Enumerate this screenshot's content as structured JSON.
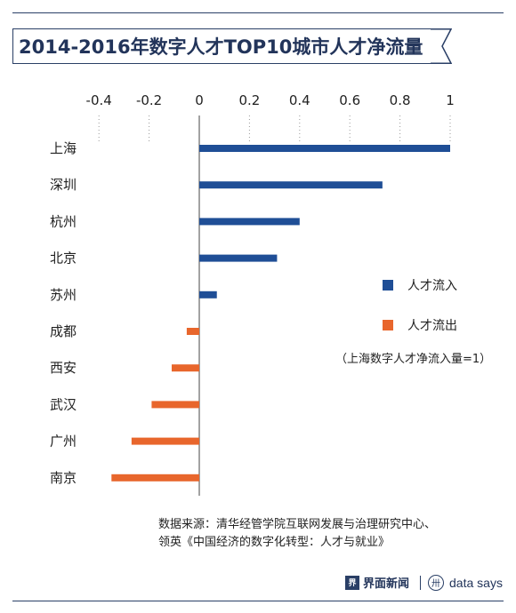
{
  "header": {
    "title": "2014-2016年数字人才TOP10城市人才净流量"
  },
  "chart_data": {
    "type": "bar",
    "orientation": "horizontal",
    "title": "2014-2016年数字人才TOP10城市人才净流量",
    "categories": [
      "上海",
      "深圳",
      "杭州",
      "北京",
      "苏州",
      "成都",
      "西安",
      "武汉",
      "广州",
      "南京"
    ],
    "values": [
      1.0,
      0.73,
      0.4,
      0.31,
      0.07,
      -0.05,
      -0.11,
      -0.19,
      -0.27,
      -0.35
    ],
    "xlim": [
      -0.4,
      1.0
    ],
    "xticks": [
      -0.4,
      -0.2,
      0,
      0.2,
      0.4,
      0.6,
      0.8,
      1
    ],
    "xtick_labels": [
      "-0.4",
      "-0.2",
      "0",
      "0.2",
      "0.4",
      "0.6",
      "0.8",
      "1"
    ],
    "grid": "dotted vertical lines at ticks",
    "xlabel": "",
    "ylabel": "",
    "legend_position": "right",
    "series": [
      {
        "name": "人才流入",
        "color": "#1f4e96"
      },
      {
        "name": "人才流出",
        "color": "#e8662c"
      }
    ]
  },
  "note": "（上海数字人才净流入量=1）",
  "source": {
    "line1": "数据来源：清华经管学院互联网发展与治理研究中心、",
    "line2": "领英《中国经济的数字化转型：人才与就业》"
  },
  "brand": {
    "logo1_glyph": "界",
    "name1": "界面新闻",
    "logo2_glyph": "卅",
    "name2": "data says"
  },
  "colors": {
    "inflow": "#1f4e96",
    "outflow": "#e8662c",
    "title": "#22345a",
    "rule": "#2a3f66"
  }
}
